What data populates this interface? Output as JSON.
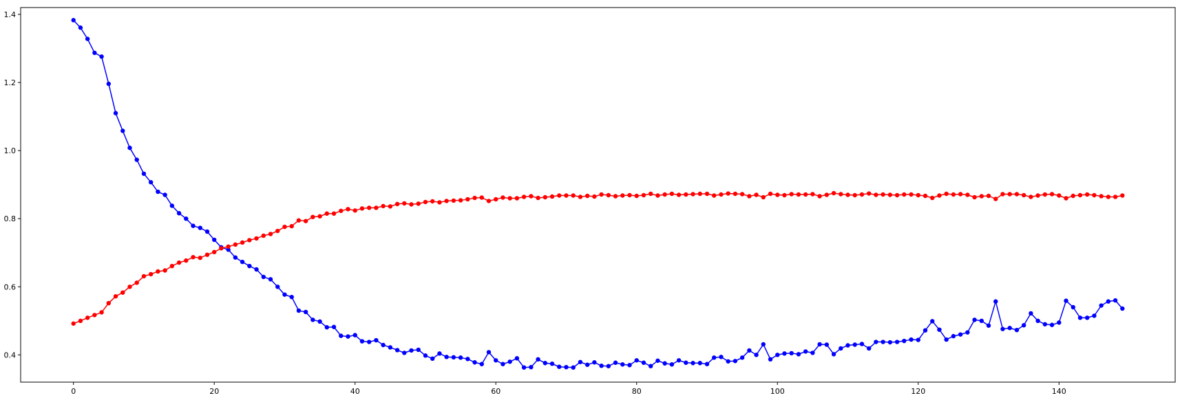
{
  "chart_data": {
    "type": "line",
    "title": "",
    "xlabel": "",
    "ylabel": "",
    "xlim": [
      -7.5,
      156.5
    ],
    "ylim": [
      0.32,
      1.42
    ],
    "xticks": [
      0,
      20,
      40,
      60,
      80,
      100,
      120,
      140
    ],
    "yticks": [
      0.4,
      0.6,
      0.8,
      1.0,
      1.2,
      1.4
    ],
    "xtick_labels": [
      "0",
      "20",
      "40",
      "60",
      "80",
      "100",
      "120",
      "140"
    ],
    "ytick_labels": [
      "0.4",
      "0.6",
      "0.8",
      "1.0",
      "1.2",
      "1.4"
    ],
    "grid": false,
    "legend": "none",
    "series": [
      {
        "color": "#0000ff",
        "marker": "circle",
        "values": [
          1.383,
          1.361,
          1.328,
          1.287,
          1.276,
          1.196,
          1.11,
          1.058,
          1.008,
          0.973,
          0.932,
          0.907,
          0.879,
          0.87,
          0.838,
          0.816,
          0.8,
          0.779,
          0.773,
          0.762,
          0.738,
          0.716,
          0.709,
          0.686,
          0.673,
          0.661,
          0.651,
          0.629,
          0.622,
          0.6,
          0.577,
          0.57,
          0.53,
          0.526,
          0.503,
          0.498,
          0.481,
          0.482,
          0.456,
          0.454,
          0.458,
          0.44,
          0.438,
          0.443,
          0.429,
          0.422,
          0.414,
          0.406,
          0.413,
          0.415,
          0.398,
          0.389,
          0.404,
          0.394,
          0.393,
          0.392,
          0.388,
          0.378,
          0.373,
          0.408,
          0.384,
          0.373,
          0.38,
          0.39,
          0.363,
          0.364,
          0.387,
          0.376,
          0.374,
          0.365,
          0.364,
          0.363,
          0.379,
          0.371,
          0.378,
          0.368,
          0.367,
          0.377,
          0.372,
          0.37,
          0.384,
          0.377,
          0.367,
          0.383,
          0.375,
          0.372,
          0.384,
          0.377,
          0.376,
          0.376,
          0.373,
          0.392,
          0.394,
          0.381,
          0.382,
          0.392,
          0.413,
          0.4,
          0.431,
          0.387,
          0.4,
          0.404,
          0.405,
          0.402,
          0.41,
          0.406,
          0.431,
          0.43,
          0.402,
          0.419,
          0.428,
          0.43,
          0.432,
          0.419,
          0.438,
          0.438,
          0.437,
          0.438,
          0.441,
          0.445,
          0.444,
          0.472,
          0.499,
          0.474,
          0.445,
          0.455,
          0.46,
          0.466,
          0.503,
          0.5,
          0.486,
          0.557,
          0.476,
          0.479,
          0.473,
          0.487,
          0.522,
          0.5,
          0.49,
          0.488,
          0.495,
          0.559,
          0.54,
          0.509,
          0.509,
          0.515,
          0.545,
          0.557,
          0.56,
          0.536
        ]
      },
      {
        "color": "#ff0000",
        "marker": "circle",
        "values": [
          0.492,
          0.5,
          0.509,
          0.517,
          0.525,
          0.552,
          0.572,
          0.583,
          0.6,
          0.612,
          0.631,
          0.637,
          0.645,
          0.648,
          0.661,
          0.671,
          0.677,
          0.687,
          0.685,
          0.694,
          0.702,
          0.713,
          0.718,
          0.724,
          0.73,
          0.737,
          0.742,
          0.75,
          0.755,
          0.764,
          0.776,
          0.778,
          0.795,
          0.793,
          0.805,
          0.807,
          0.815,
          0.815,
          0.823,
          0.828,
          0.824,
          0.83,
          0.832,
          0.832,
          0.837,
          0.836,
          0.843,
          0.845,
          0.842,
          0.844,
          0.849,
          0.851,
          0.848,
          0.852,
          0.853,
          0.854,
          0.857,
          0.861,
          0.862,
          0.852,
          0.857,
          0.862,
          0.86,
          0.86,
          0.864,
          0.866,
          0.861,
          0.863,
          0.865,
          0.868,
          0.868,
          0.868,
          0.864,
          0.867,
          0.865,
          0.871,
          0.869,
          0.866,
          0.868,
          0.869,
          0.867,
          0.869,
          0.873,
          0.868,
          0.871,
          0.873,
          0.87,
          0.871,
          0.872,
          0.873,
          0.873,
          0.868,
          0.871,
          0.874,
          0.873,
          0.872,
          0.866,
          0.87,
          0.863,
          0.873,
          0.87,
          0.869,
          0.872,
          0.871,
          0.871,
          0.872,
          0.866,
          0.87,
          0.875,
          0.872,
          0.87,
          0.869,
          0.871,
          0.874,
          0.87,
          0.871,
          0.87,
          0.869,
          0.871,
          0.871,
          0.869,
          0.867,
          0.861,
          0.868,
          0.873,
          0.871,
          0.872,
          0.87,
          0.863,
          0.866,
          0.867,
          0.858,
          0.872,
          0.872,
          0.872,
          0.869,
          0.864,
          0.868,
          0.871,
          0.872,
          0.868,
          0.86,
          0.867,
          0.869,
          0.871,
          0.869,
          0.866,
          0.864,
          0.864,
          0.868
        ]
      }
    ]
  }
}
